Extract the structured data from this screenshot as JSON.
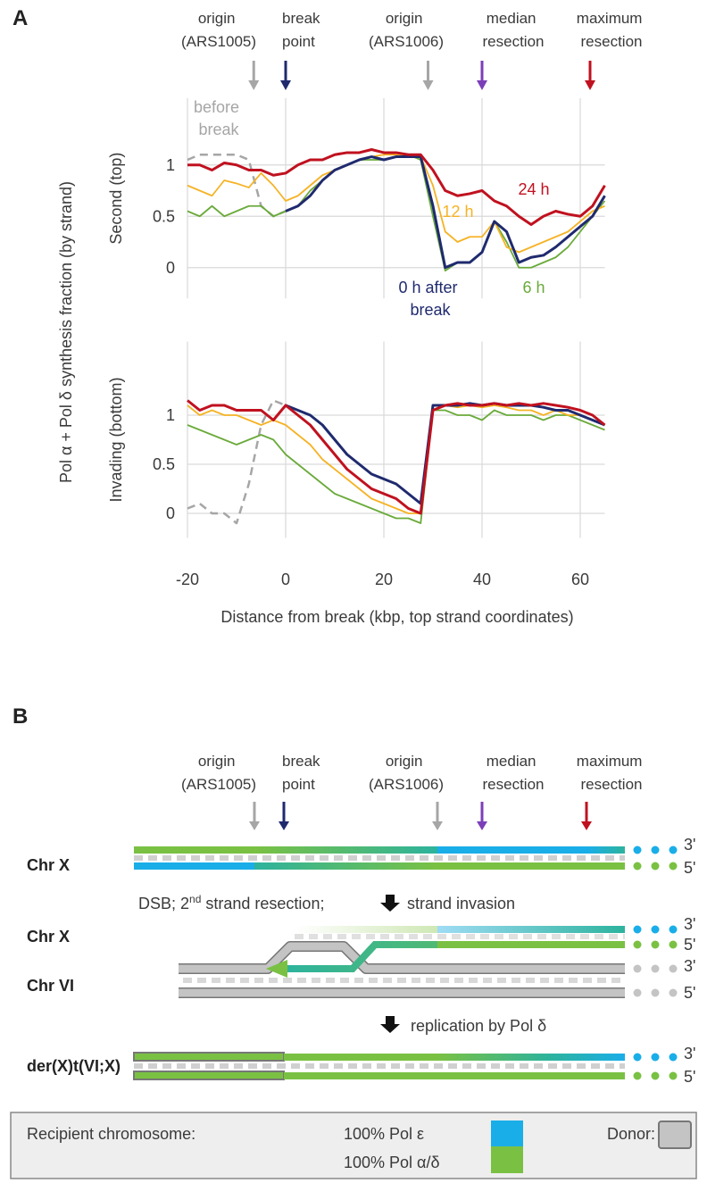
{
  "figure": {
    "panel_label": "A",
    "y_label": "Pol α + Pol δ synthesis fraction (by strand)",
    "x_label": "Distance from break (kbp, top strand coordinates)",
    "annotations": [
      {
        "text": "origin (ARS1005)",
        "x": -6.5,
        "color": "#a6a6a6"
      },
      {
        "text": "break point",
        "x": 0,
        "color": "#1f2a6e"
      },
      {
        "text": "origin (ARS1006)",
        "x": 29,
        "color": "#a6a6a6"
      },
      {
        "text": "median resection",
        "x": 40,
        "color": "#7b3fb8"
      },
      {
        "text": "maximum resection",
        "x": 62,
        "color": "#c0111f"
      }
    ]
  },
  "chart_data": [
    {
      "type": "line",
      "y_label": "Second (top)",
      "x": [
        -20,
        -17.5,
        -15,
        -12.5,
        -10,
        -7.5,
        -5,
        -2.5,
        0,
        2.5,
        5,
        7.5,
        10,
        12.5,
        15,
        17.5,
        20,
        22.5,
        25,
        27.5,
        30,
        32.5,
        35,
        37.5,
        40,
        42.5,
        45,
        47.5,
        50,
        52.5,
        55,
        57.5,
        60,
        62.5,
        65
      ],
      "xlim": [
        -20,
        65
      ],
      "xticks": [
        -20,
        0,
        20,
        40,
        60
      ],
      "ylim": [
        -0.3,
        1.65
      ],
      "yticks": [
        0,
        0.5,
        1
      ],
      "grid": true,
      "series": [
        {
          "name": "before break",
          "color": "#a6a6a6",
          "dashed": true,
          "values": [
            1.05,
            1.1,
            1.1,
            1.1,
            1.1,
            1.05,
            0.6,
            0.5,
            0.55,
            null,
            null,
            null,
            null,
            null,
            null,
            null,
            null,
            null,
            null,
            null,
            null,
            null,
            null,
            null,
            null,
            null,
            null,
            null,
            null,
            null,
            null,
            null,
            null,
            null,
            null
          ]
        },
        {
          "name": "6 h",
          "color": "#6aaa3a",
          "values": [
            0.55,
            0.5,
            0.6,
            0.5,
            0.55,
            0.6,
            0.6,
            0.5,
            0.55,
            0.6,
            0.75,
            0.85,
            0.95,
            1.0,
            1.05,
            1.05,
            1.05,
            1.08,
            1.1,
            1.05,
            0.5,
            -0.03,
            0.05,
            0.05,
            0.15,
            0.45,
            0.25,
            0.0,
            0.0,
            0.05,
            0.1,
            0.2,
            0.35,
            0.5,
            0.65
          ]
        },
        {
          "name": "12 h",
          "color": "#f5b325",
          "values": [
            0.8,
            0.75,
            0.7,
            0.85,
            0.82,
            0.78,
            0.92,
            0.8,
            0.65,
            0.7,
            0.8,
            0.9,
            0.95,
            1.0,
            1.05,
            1.08,
            1.1,
            1.1,
            1.1,
            1.08,
            0.8,
            0.35,
            0.25,
            0.3,
            0.3,
            0.45,
            0.2,
            0.15,
            0.2,
            0.25,
            0.3,
            0.35,
            0.45,
            0.55,
            0.6
          ]
        },
        {
          "name": "0 h after break",
          "color": "#1f2a6e",
          "values": [
            null,
            null,
            null,
            null,
            null,
            null,
            null,
            null,
            0.55,
            0.6,
            0.7,
            0.85,
            0.95,
            1.0,
            1.05,
            1.08,
            1.05,
            1.08,
            1.08,
            1.08,
            0.6,
            0.0,
            0.05,
            0.05,
            0.15,
            0.45,
            0.35,
            0.05,
            0.1,
            0.12,
            0.2,
            0.3,
            0.4,
            0.5,
            0.7
          ]
        },
        {
          "name": "24 h",
          "color": "#c0111f",
          "values": [
            1.0,
            1.0,
            0.95,
            1.02,
            1.0,
            0.95,
            0.95,
            0.9,
            0.92,
            1.0,
            1.05,
            1.05,
            1.1,
            1.12,
            1.12,
            1.15,
            1.12,
            1.12,
            1.1,
            1.1,
            0.95,
            0.75,
            0.7,
            0.72,
            0.75,
            0.65,
            0.6,
            0.5,
            0.42,
            0.5,
            0.55,
            0.52,
            0.5,
            0.6,
            0.8
          ]
        }
      ]
    },
    {
      "type": "line",
      "y_label": "Invading (bottom)",
      "x": [
        -20,
        -17.5,
        -15,
        -12.5,
        -10,
        -7.5,
        -5,
        -2.5,
        0,
        2.5,
        5,
        7.5,
        10,
        12.5,
        15,
        17.5,
        20,
        22.5,
        25,
        27.5,
        30,
        32.5,
        35,
        37.5,
        40,
        42.5,
        45,
        47.5,
        50,
        52.5,
        55,
        57.5,
        60,
        62.5,
        65
      ],
      "xlim": [
        -20,
        65
      ],
      "xticks": [
        -20,
        0,
        20,
        40,
        60
      ],
      "ylim": [
        -0.25,
        1.75
      ],
      "yticks": [
        0,
        0.5,
        1
      ],
      "grid": true,
      "series": [
        {
          "color": "#a6a6a6",
          "dashed": true,
          "values": [
            0.05,
            0.1,
            0.0,
            0.0,
            -0.1,
            0.3,
            0.9,
            1.15,
            1.1,
            null,
            null,
            null,
            null,
            null,
            null,
            null,
            null,
            null,
            null,
            null,
            null,
            null,
            null,
            null,
            null,
            null,
            null,
            null,
            null,
            null,
            null,
            null,
            null,
            null,
            null
          ]
        },
        {
          "color": "#6aaa3a",
          "values": [
            0.9,
            0.85,
            0.8,
            0.75,
            0.7,
            0.75,
            0.8,
            0.75,
            0.6,
            0.5,
            0.4,
            0.3,
            0.2,
            0.15,
            0.1,
            0.05,
            0.0,
            -0.05,
            -0.05,
            -0.1,
            1.05,
            1.05,
            1.0,
            1.0,
            0.95,
            1.05,
            1.0,
            1.0,
            1.0,
            0.95,
            1.0,
            1.0,
            0.95,
            0.9,
            0.85
          ]
        },
        {
          "color": "#f5b325",
          "values": [
            1.1,
            1.0,
            1.05,
            1.0,
            1.0,
            0.95,
            0.9,
            0.95,
            0.9,
            0.8,
            0.7,
            0.55,
            0.45,
            0.35,
            0.25,
            0.15,
            0.1,
            0.05,
            0.0,
            0.0,
            1.05,
            1.1,
            1.08,
            1.1,
            1.08,
            1.1,
            1.08,
            1.05,
            1.05,
            1.0,
            1.05,
            1.0,
            1.0,
            0.95,
            0.9
          ]
        },
        {
          "color": "#1f2a6e",
          "values": [
            null,
            null,
            null,
            null,
            null,
            null,
            null,
            null,
            1.1,
            1.05,
            1.0,
            0.9,
            0.75,
            0.6,
            0.5,
            0.4,
            0.35,
            0.3,
            0.2,
            0.1,
            1.1,
            1.1,
            1.1,
            1.12,
            1.1,
            1.12,
            1.1,
            1.1,
            1.1,
            1.08,
            1.05,
            1.05,
            1.0,
            0.95,
            0.9
          ]
        },
        {
          "color": "#c0111f",
          "values": [
            1.15,
            1.05,
            1.1,
            1.1,
            1.05,
            1.05,
            1.05,
            0.95,
            1.1,
            1.0,
            0.9,
            0.75,
            0.6,
            0.45,
            0.35,
            0.25,
            0.2,
            0.15,
            0.05,
            0.0,
            1.05,
            1.1,
            1.12,
            1.1,
            1.1,
            1.12,
            1.1,
            1.12,
            1.1,
            1.12,
            1.1,
            1.08,
            1.05,
            1.0,
            0.9
          ]
        }
      ]
    }
  ],
  "panel_b": {
    "panel_label": "B",
    "rows": [
      "Chr X",
      "Chr X",
      "Chr VI",
      "der(X)t(VI;X)"
    ],
    "strand_ends": [
      "3'",
      "5'"
    ],
    "step1": [
      "DSB; 2",
      "nd",
      "strand resection;",
      "strand invasion"
    ],
    "step2": "replication by Pol δ",
    "legend": {
      "recipient": "Recipient chromosome:",
      "pol_e": "100% Pol ε",
      "pol_ad": "100% Pol α/δ",
      "donor": "Donor:"
    }
  }
}
